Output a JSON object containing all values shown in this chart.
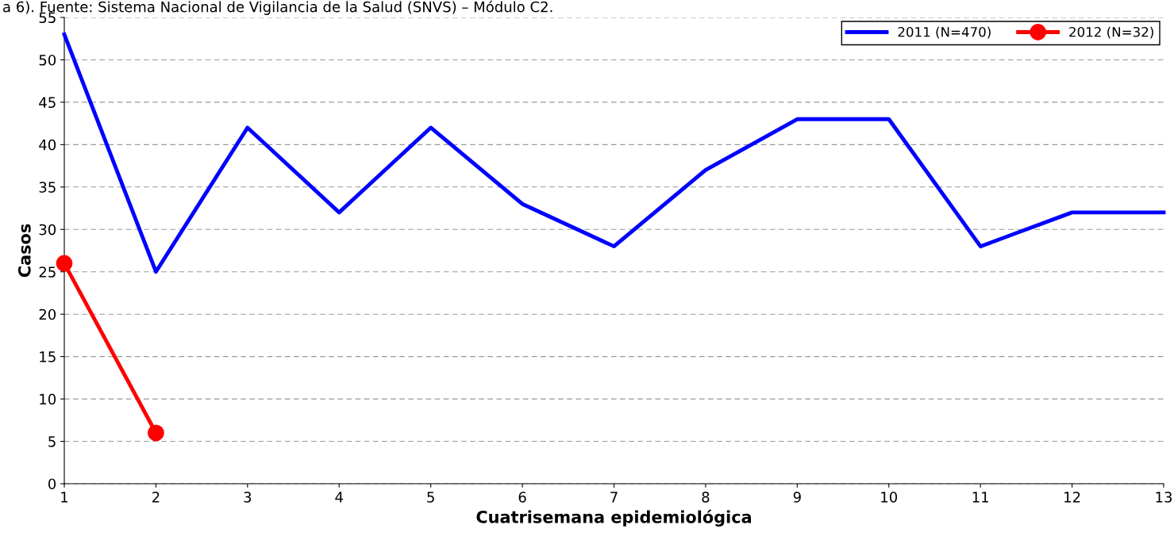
{
  "chart_data": {
    "type": "line",
    "xlabel": "Cuatrisemana epidemiológica",
    "ylabel": "Casos",
    "annotations": [
      "a 6). Fuente: Sistema Nacional de Vigilancia de la Salud (SNVS) – Módulo C2."
    ],
    "x": [
      1,
      2,
      3,
      4,
      5,
      6,
      7,
      8,
      9,
      10,
      11,
      12,
      13
    ],
    "series": [
      {
        "name": "2011 (N=470)",
        "color": "#0000ff",
        "marker": "none",
        "values": [
          53,
          25,
          42,
          32,
          42,
          33,
          28,
          37,
          43,
          43,
          28,
          32,
          32
        ]
      },
      {
        "name": "2012 (N=32)",
        "color": "#ff0000",
        "marker": "circle",
        "values": [
          26,
          6,
          null,
          null,
          null,
          null,
          null,
          null,
          null,
          null,
          null,
          null,
          null
        ]
      }
    ],
    "xlim": [
      1,
      13
    ],
    "xticks": [
      1,
      2,
      3,
      4,
      5,
      6,
      7,
      8,
      9,
      10,
      11,
      12,
      13
    ],
    "ylim": [
      0,
      55
    ],
    "yticks": [
      0,
      5,
      10,
      15,
      20,
      25,
      30,
      35,
      40,
      45,
      50,
      55
    ],
    "grid": "y",
    "legend": "top right"
  }
}
